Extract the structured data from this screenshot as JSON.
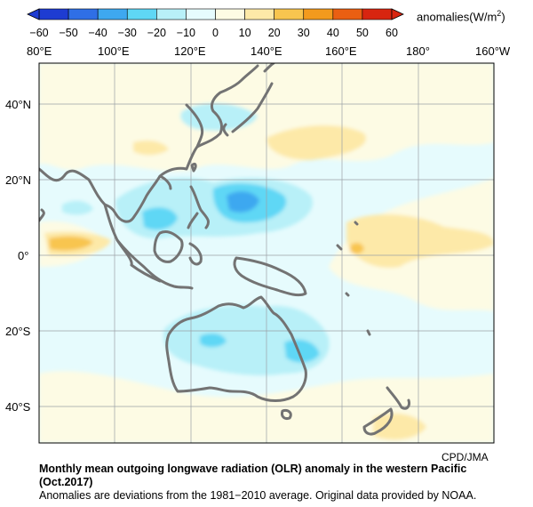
{
  "colorbar": {
    "label": "anomalies(W/m",
    "label_sup": "2",
    "label_end": ")",
    "ticks": [
      "−60",
      "−50",
      "−40",
      "−30",
      "−20",
      "−10",
      "0",
      "10",
      "20",
      "30",
      "40",
      "50",
      "60"
    ],
    "colors": [
      "#1e3cd2",
      "#2f6fe6",
      "#3ea8f0",
      "#5fd7f5",
      "#b8f0f8",
      "#e6fbfd",
      "#fdfbe4",
      "#fde9a8",
      "#f8c54f",
      "#f39a1d",
      "#ea5f12",
      "#d82510"
    ]
  },
  "map": {
    "lon_labels": [
      "80°E",
      "100°E",
      "120°E",
      "140°E",
      "160°E",
      "180°",
      "160°W"
    ],
    "lat_labels": [
      "40°N",
      "20°N",
      "0°",
      "20°S",
      "40°S"
    ],
    "credit": "CPD/JMA"
  },
  "caption": {
    "title": "Monthly mean outgoing longwave radiation (OLR) anomaly in the western Pacific",
    "period": "(Oct.2017)",
    "note": "Anomalies are deviations from the 1981−2010 average. Original data provided by NOAA."
  }
}
